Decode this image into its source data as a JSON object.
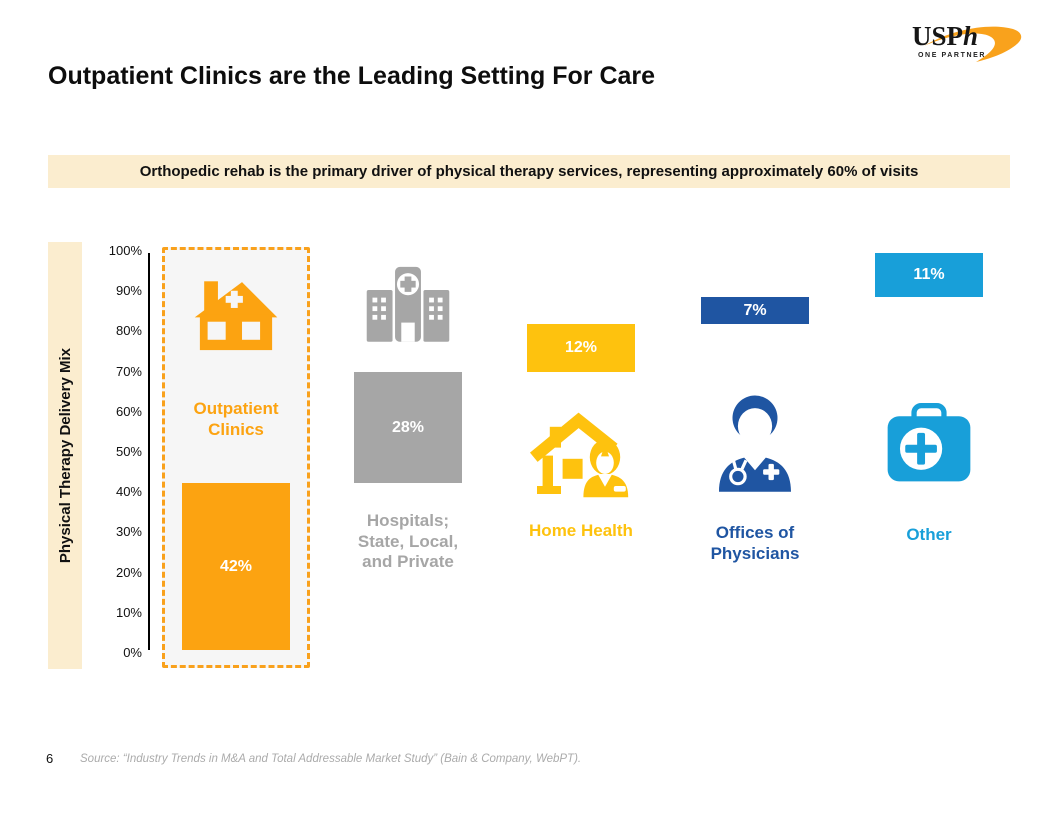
{
  "logo": {
    "brand": "USPh",
    "tagline": "ONE PARTNER",
    "swoosh_color": "#F9A21C"
  },
  "header": {
    "title": "Outpatient Clinics are the Leading Setting For Care"
  },
  "banner": {
    "text": "Orthopedic rehab is the primary driver of physical therapy services, representing approximately 60% of visits",
    "bg_color": "#FBEDCF"
  },
  "chart_data": {
    "type": "bar",
    "subtype": "stacked-waterfall",
    "title": "",
    "ylabel": "Physical Therapy Delivery Mix",
    "xlabel": "",
    "ylim": [
      0,
      100
    ],
    "ytick_labels": [
      "100%",
      "90%",
      "80%",
      "70%",
      "60%",
      "50%",
      "40%",
      "30%",
      "20%",
      "10%",
      "0%"
    ],
    "grid": false,
    "legend": "none",
    "categories": [
      "Outpatient Clinics",
      "Hospitals; State, Local, and Private",
      "Home Health",
      "Offices of Physicians",
      "Other"
    ],
    "values": [
      42,
      28,
      12,
      7,
      11
    ],
    "segments": [
      {
        "label": "Outpatient Clinics",
        "value": 42,
        "value_label": "42%",
        "color": "#FCA311",
        "icon": "clinic-building-icon",
        "highlighted": true
      },
      {
        "label": "Hospitals; State, Local, and Private",
        "value": 28,
        "value_label": "28%",
        "color": "#A6A6A6",
        "icon": "hospital-icon",
        "highlighted": false
      },
      {
        "label": "Home Health",
        "value": 12,
        "value_label": "12%",
        "color": "#FEC20E",
        "icon": "home-health-icon",
        "highlighted": false
      },
      {
        "label": "Offices of Physicians",
        "value": 7,
        "value_label": "7%",
        "color": "#1F55A2",
        "icon": "doctor-icon",
        "highlighted": false
      },
      {
        "label": "Other",
        "value": 11,
        "value_label": "11%",
        "color": "#189FD9",
        "icon": "first-aid-kit-icon",
        "highlighted": false
      }
    ]
  },
  "footer": {
    "page_number": "6",
    "source": "Source: “Industry Trends in M&A and Total Addressable Market Study” (Bain & Company, WebPT)."
  }
}
